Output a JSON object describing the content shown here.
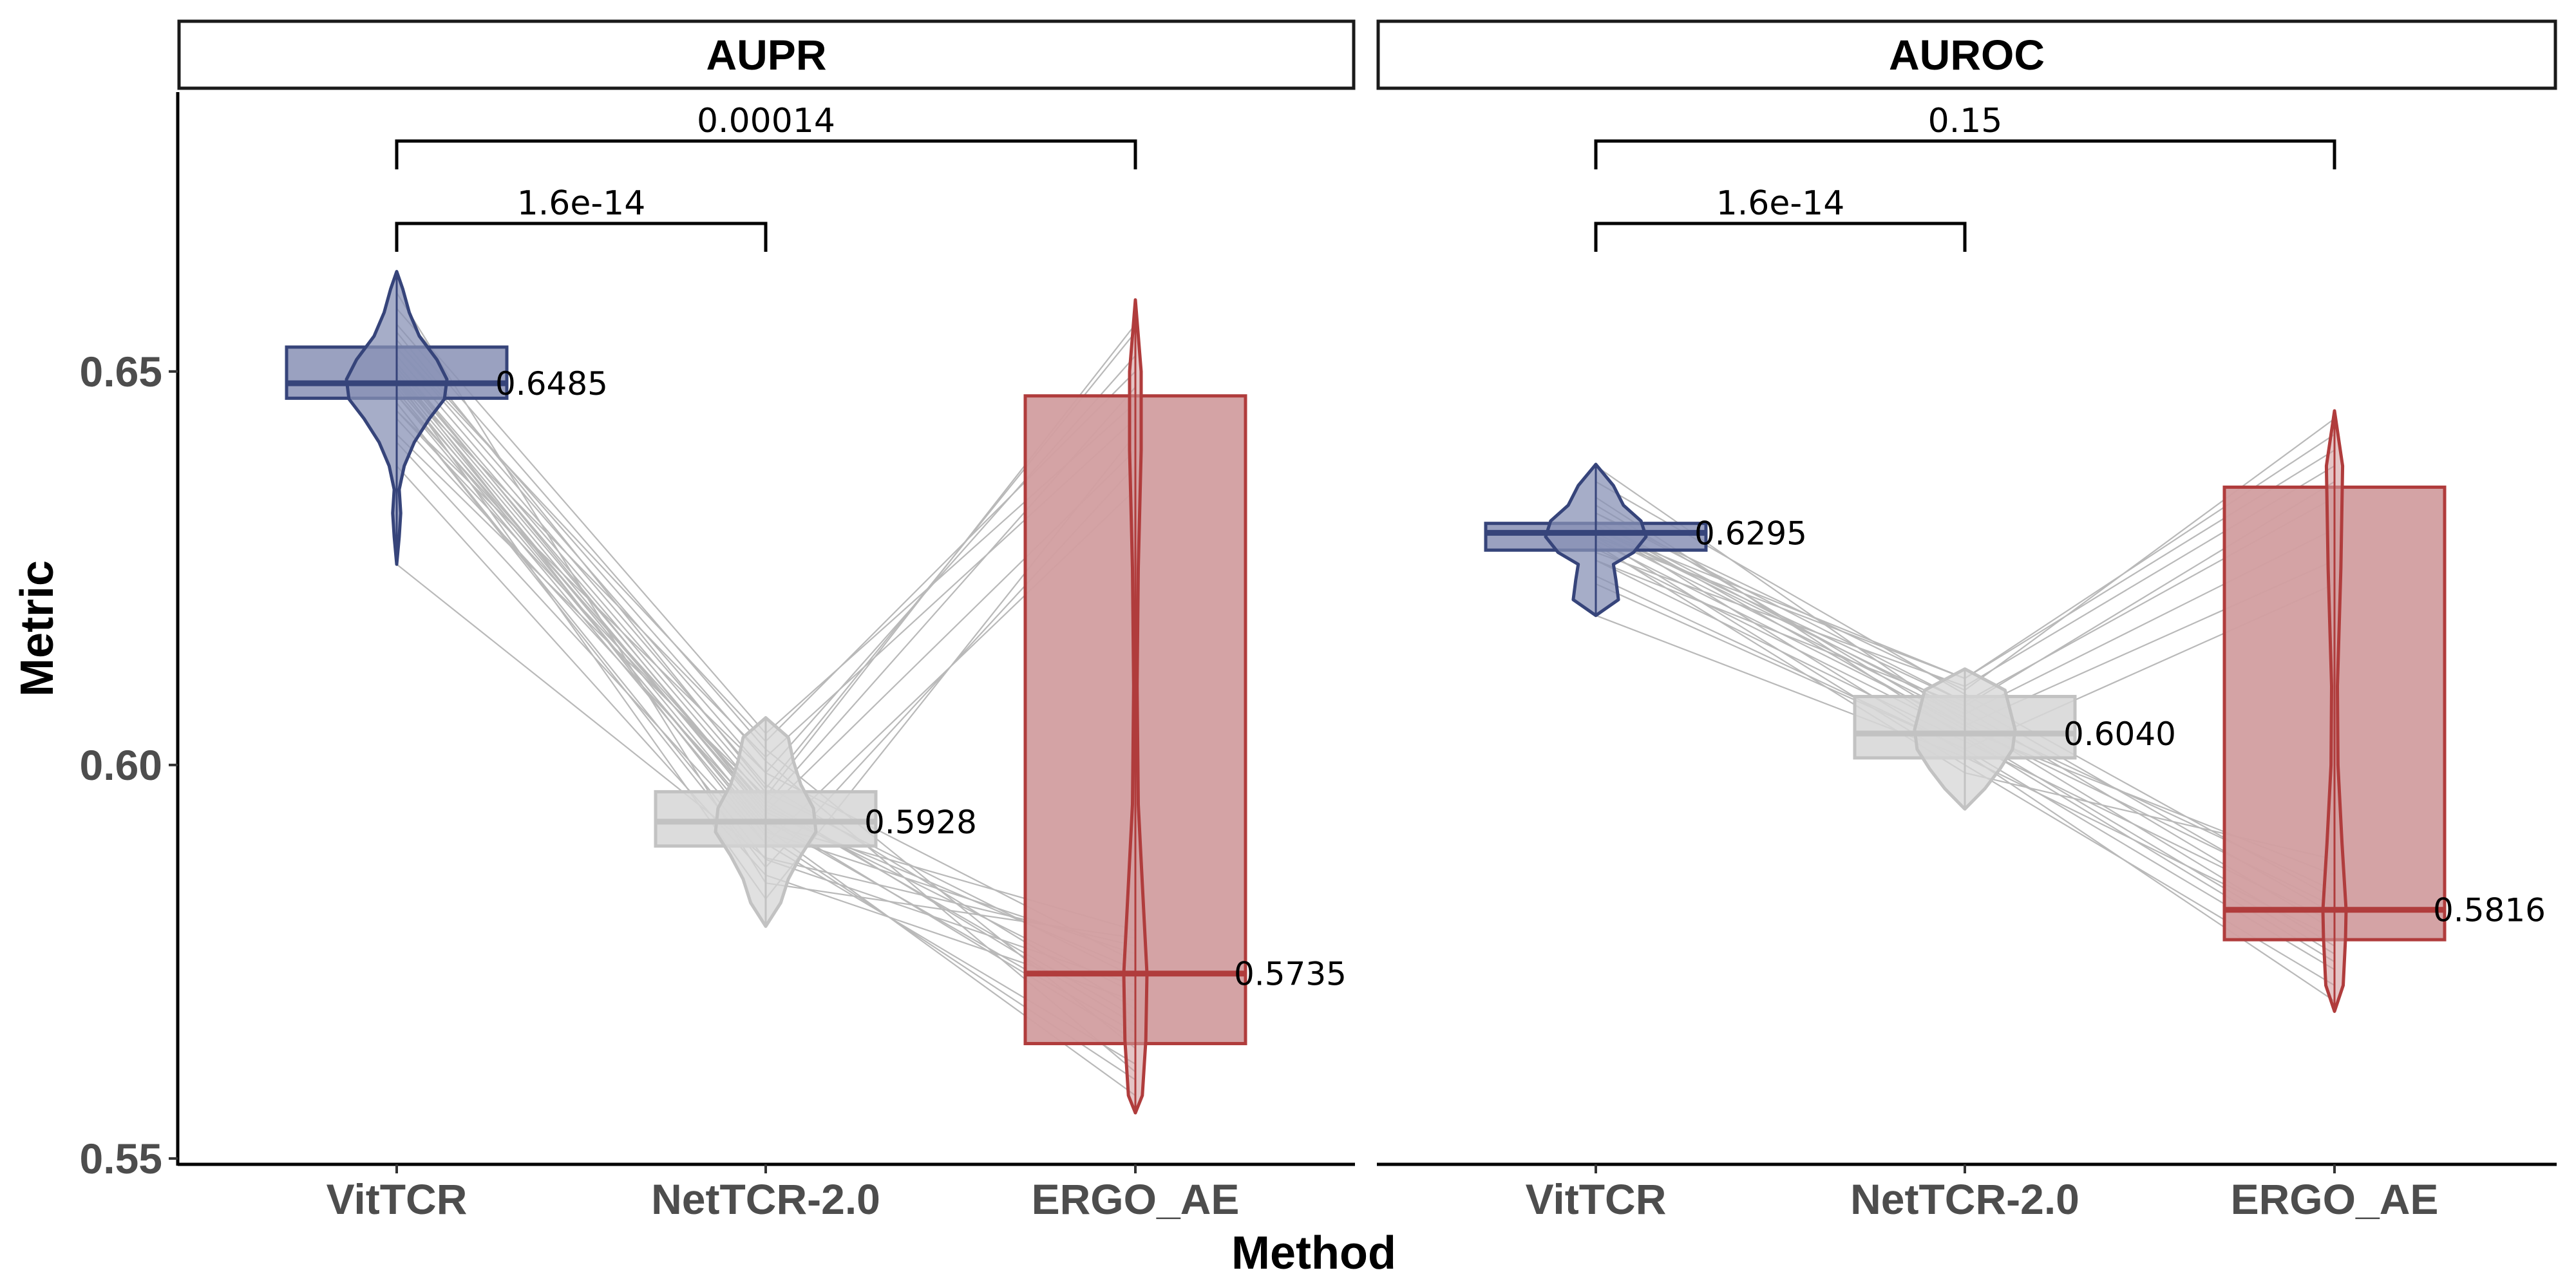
{
  "chart_data": {
    "type": "violin-box",
    "xlabel": "Method",
    "ylabel": "Metric",
    "ylim": [
      0.5495,
      0.6855
    ],
    "yticks": [
      0.55,
      0.6,
      0.65
    ],
    "ytick_labels": [
      "0.55",
      "0.60",
      "0.65"
    ],
    "categories": [
      "VitTCR",
      "NetTCR-2.0",
      "ERGO_AE"
    ],
    "colors": {
      "VitTCR": {
        "fill": "#8891b5",
        "stroke": "#36447a"
      },
      "NetTCR-2.0": {
        "fill": "#d6d6d6",
        "stroke": "#c2c2c2"
      },
      "ERGO_AE": {
        "fill": "#d29ea0",
        "stroke": "#b03c3c"
      }
    },
    "panels": [
      {
        "title": "AUPR",
        "groups": [
          {
            "method": "VitTCR",
            "median": 0.6485,
            "median_label": "0.6485",
            "q1": 0.6466,
            "q3": 0.6531,
            "min": 0.6255,
            "max": 0.6627,
            "density": [
              [
                0.6255,
                0.0
              ],
              [
                0.629,
                0.05
              ],
              [
                0.632,
                0.08
              ],
              [
                0.635,
                0.05
              ],
              [
                0.638,
                0.15
              ],
              [
                0.641,
                0.35
              ],
              [
                0.644,
                0.65
              ],
              [
                0.6465,
                0.95
              ],
              [
                0.649,
                1.0
              ],
              [
                0.6515,
                0.8
              ],
              [
                0.6545,
                0.45
              ],
              [
                0.6575,
                0.25
              ],
              [
                0.6605,
                0.12
              ],
              [
                0.6627,
                0.0
              ]
            ]
          },
          {
            "method": "NetTCR-2.0",
            "median": 0.5928,
            "median_label": "0.5928",
            "q1": 0.5897,
            "q3": 0.5966,
            "min": 0.5795,
            "max": 0.606,
            "density": [
              [
                0.5795,
                0.0
              ],
              [
                0.5825,
                0.3
              ],
              [
                0.5855,
                0.45
              ],
              [
                0.5885,
                0.7
              ],
              [
                0.5915,
                1.0
              ],
              [
                0.5945,
                0.95
              ],
              [
                0.5975,
                0.7
              ],
              [
                0.6005,
                0.55
              ],
              [
                0.6035,
                0.45
              ],
              [
                0.606,
                0.0
              ]
            ]
          },
          {
            "method": "ERGO_AE",
            "median": 0.5735,
            "median_label": "0.5735",
            "q1": 0.5646,
            "q3": 0.6469,
            "min": 0.5558,
            "max": 0.6591,
            "density": [
              [
                0.5558,
                0.0
              ],
              [
                0.558,
                0.6
              ],
              [
                0.565,
                0.9
              ],
              [
                0.5735,
                1.0
              ],
              [
                0.582,
                0.7
              ],
              [
                0.595,
                0.25
              ],
              [
                0.61,
                0.15
              ],
              [
                0.625,
                0.25
              ],
              [
                0.64,
                0.5
              ],
              [
                0.65,
                0.5
              ],
              [
                0.6591,
                0.0
              ]
            ]
          }
        ],
        "comparisons": [
          {
            "from": 0,
            "to": 1,
            "label": "1.6e-14",
            "level": 1
          },
          {
            "from": 0,
            "to": 2,
            "label": "0.00014",
            "level": 2
          }
        ],
        "paired_lines": [
          [
            0.6255,
            0.5882,
            0.577
          ],
          [
            0.638,
            0.586,
            0.57
          ],
          [
            0.641,
            0.59,
            0.562
          ],
          [
            0.644,
            0.593,
            0.566
          ],
          [
            0.645,
            0.595,
            0.568
          ],
          [
            0.646,
            0.588,
            0.572
          ],
          [
            0.647,
            0.591,
            0.56
          ],
          [
            0.6475,
            0.592,
            0.558
          ],
          [
            0.648,
            0.594,
            0.574
          ],
          [
            0.6485,
            0.5915,
            0.576
          ],
          [
            0.649,
            0.5925,
            0.579
          ],
          [
            0.6495,
            0.5935,
            0.565
          ],
          [
            0.65,
            0.5945,
            0.571
          ],
          [
            0.6505,
            0.5955,
            0.567
          ],
          [
            0.651,
            0.5965,
            0.573
          ],
          [
            0.652,
            0.5975,
            0.569
          ],
          [
            0.653,
            0.599,
            0.575
          ],
          [
            0.654,
            0.6005,
            0.561
          ],
          [
            0.656,
            0.602,
            0.564
          ],
          [
            0.66,
            0.585,
            0.578
          ],
          [
            0.642,
            0.596,
            0.656
          ],
          [
            0.645,
            0.599,
            0.652
          ],
          [
            0.647,
            0.595,
            0.648
          ],
          [
            0.649,
            0.601,
            0.644
          ],
          [
            0.651,
            0.594,
            0.64
          ],
          [
            0.653,
            0.603,
            0.65
          ],
          [
            0.655,
            0.597,
            0.655
          ],
          [
            0.658,
            0.604,
            0.646
          ],
          [
            0.646,
            0.587,
            0.638
          ],
          [
            0.65,
            0.59,
            0.635
          ],
          [
            0.649,
            0.583,
            0.642
          ]
        ]
      },
      {
        "title": "AUROC",
        "groups": [
          {
            "method": "VitTCR",
            "median": 0.6295,
            "median_label": "0.6295",
            "q1": 0.6273,
            "q3": 0.6307,
            "min": 0.619,
            "max": 0.6382,
            "density": [
              [
                0.619,
                0.0
              ],
              [
                0.621,
                0.45
              ],
              [
                0.6235,
                0.4
              ],
              [
                0.6255,
                0.35
              ],
              [
                0.627,
                0.75
              ],
              [
                0.629,
                1.0
              ],
              [
                0.631,
                0.9
              ],
              [
                0.633,
                0.55
              ],
              [
                0.6355,
                0.35
              ],
              [
                0.6382,
                0.0
              ]
            ]
          },
          {
            "method": "NetTCR-2.0",
            "median": 0.604,
            "median_label": "0.6040",
            "q1": 0.6009,
            "q3": 0.6087,
            "min": 0.5944,
            "max": 0.6122,
            "density": [
              [
                0.5944,
                0.0
              ],
              [
                0.597,
                0.4
              ],
              [
                0.5995,
                0.7
              ],
              [
                0.602,
                0.95
              ],
              [
                0.6045,
                1.0
              ],
              [
                0.607,
                0.9
              ],
              [
                0.6095,
                0.8
              ],
              [
                0.6122,
                0.0
              ]
            ]
          },
          {
            "method": "ERGO_AE",
            "median": 0.5816,
            "median_label": "0.5816",
            "q1": 0.5778,
            "q3": 0.6353,
            "min": 0.5687,
            "max": 0.645,
            "density": [
              [
                0.5687,
                0.0
              ],
              [
                0.572,
                0.75
              ],
              [
                0.578,
                0.95
              ],
              [
                0.5816,
                1.0
              ],
              [
                0.59,
                0.65
              ],
              [
                0.6,
                0.3
              ],
              [
                0.61,
                0.25
              ],
              [
                0.625,
                0.55
              ],
              [
                0.638,
                0.7
              ],
              [
                0.645,
                0.0
              ]
            ]
          }
        ],
        "comparisons": [
          {
            "from": 0,
            "to": 1,
            "label": "1.6e-14",
            "level": 1
          },
          {
            "from": 0,
            "to": 2,
            "label": "0.15",
            "level": 2
          }
        ],
        "paired_lines": [
          [
            0.619,
            0.601,
            0.578
          ],
          [
            0.623,
            0.602,
            0.574
          ],
          [
            0.626,
            0.603,
            0.58
          ],
          [
            0.6275,
            0.604,
            0.576
          ],
          [
            0.6285,
            0.605,
            0.582
          ],
          [
            0.629,
            0.6,
            0.572
          ],
          [
            0.6295,
            0.606,
            0.584
          ],
          [
            0.63,
            0.607,
            0.579
          ],
          [
            0.6305,
            0.6015,
            0.57
          ],
          [
            0.631,
            0.6045,
            0.586
          ],
          [
            0.632,
            0.608,
            0.581
          ],
          [
            0.634,
            0.6035,
            0.575
          ],
          [
            0.636,
            0.609,
            0.583
          ],
          [
            0.638,
            0.6055,
            0.577
          ],
          [
            0.628,
            0.599,
            0.588
          ],
          [
            0.627,
            0.61,
            0.638
          ],
          [
            0.629,
            0.611,
            0.642
          ],
          [
            0.63,
            0.608,
            0.634
          ],
          [
            0.631,
            0.6065,
            0.63
          ],
          [
            0.632,
            0.6095,
            0.644
          ],
          [
            0.633,
            0.605,
            0.626
          ],
          [
            0.626,
            0.6075,
            0.636
          ],
          [
            0.624,
            0.602,
            0.623
          ],
          [
            0.63,
            0.611,
            0.64
          ]
        ]
      }
    ]
  }
}
